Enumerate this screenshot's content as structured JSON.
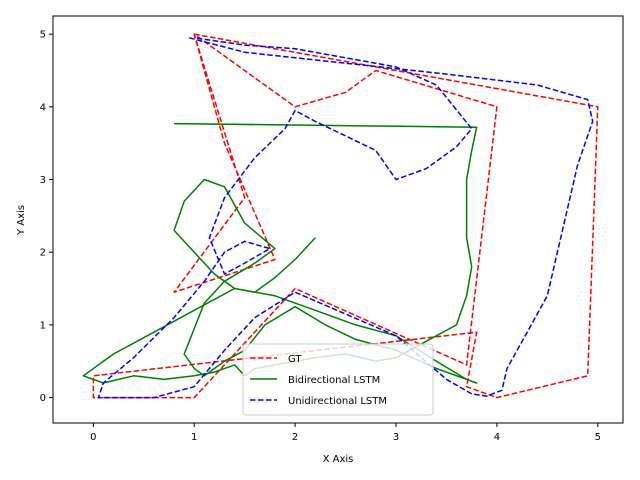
{
  "chart_data": {
    "type": "line",
    "title": "",
    "xlabel": "X Axis",
    "ylabel": "Y Axis",
    "xlim": [
      -0.4,
      5.25
    ],
    "ylim": [
      -0.35,
      5.25
    ],
    "xticks": [
      0,
      1,
      2,
      3,
      4,
      5
    ],
    "yticks": [
      0,
      1,
      2,
      3,
      4,
      5
    ],
    "grid": false,
    "legend": "lower center",
    "series": [
      {
        "name": "GT",
        "color": "#ff0000",
        "style": "dashed",
        "x": [
          1.0,
          5.0,
          4.9,
          4.0,
          3.7,
          3.8,
          0.0,
          0.0,
          1.0,
          2.0,
          3.7,
          4.0,
          2.8,
          2.5,
          2.0,
          1.0,
          1.5,
          0.8,
          1.8,
          1.3,
          1.0
        ],
        "y": [
          5.0,
          4.0,
          0.3,
          0.0,
          0.15,
          0.9,
          0.3,
          0.0,
          0.0,
          1.5,
          0.45,
          4.0,
          4.5,
          4.2,
          4.0,
          5.0,
          2.75,
          1.45,
          1.9,
          3.5,
          5.0
        ]
      },
      {
        "name": "Bidirectional LSTM",
        "color": "#008000",
        "style": "solid",
        "x": [
          0.8,
          3.8,
          3.75,
          3.7,
          3.7,
          3.7,
          3.75,
          3.7,
          3.6,
          3.2,
          3.0,
          2.8,
          2.5,
          2.2,
          2.0,
          1.8,
          1.6,
          1.5,
          1.4,
          1.2,
          1.0,
          0.7,
          0.4,
          0.1,
          -0.1,
          0.2,
          0.6,
          1.0,
          1.4,
          1.8,
          2.0,
          2.2,
          2.6,
          3.0,
          3.4,
          3.7,
          3.8,
          3.4,
          3.0,
          2.6,
          2.3,
          2.0,
          1.7,
          1.5,
          1.3,
          1.2,
          1.1,
          1.0,
          0.9,
          1.1,
          1.3,
          1.6,
          1.8,
          1.5,
          1.3,
          1.1,
          0.9,
          0.8,
          1.0,
          1.2,
          1.4,
          1.6,
          1.8,
          2.0,
          2.2
        ],
        "y": [
          3.77,
          3.72,
          3.4,
          3.0,
          2.6,
          2.2,
          1.8,
          1.4,
          1.0,
          0.7,
          0.55,
          0.5,
          0.6,
          0.55,
          0.5,
          0.45,
          0.4,
          0.3,
          0.45,
          0.35,
          0.3,
          0.25,
          0.3,
          0.2,
          0.3,
          0.6,
          0.9,
          1.2,
          1.5,
          1.4,
          1.3,
          1.2,
          1.0,
          0.85,
          0.5,
          0.25,
          0.2,
          0.4,
          0.65,
          0.8,
          1.0,
          1.25,
          1.0,
          0.65,
          0.5,
          0.4,
          0.3,
          0.4,
          0.6,
          1.3,
          1.6,
          1.85,
          2.05,
          2.4,
          2.9,
          3.0,
          2.7,
          2.3,
          2.0,
          1.7,
          1.5,
          1.45,
          1.65,
          1.9,
          2.2
        ]
      },
      {
        "name": "Unidirectional LSTM",
        "color": "#0000ff",
        "style": "dashed",
        "x": [
          0.95,
          1.5,
          2.5,
          3.5,
          4.4,
          4.9,
          4.95,
          4.8,
          4.7,
          4.6,
          4.5,
          4.3,
          4.1,
          4.05,
          3.9,
          3.75,
          3.5,
          3.0,
          2.5,
          2.0,
          1.6,
          1.3,
          1.0,
          0.6,
          0.3,
          0.05,
          0.1,
          0.4,
          0.8,
          1.1,
          1.3,
          1.5,
          1.75,
          1.5,
          1.3,
          1.15,
          1.3,
          1.6,
          1.9,
          2.0,
          2.2,
          2.5,
          2.8,
          3.0,
          3.3,
          3.6,
          3.75,
          3.4,
          3.0,
          2.6,
          2.4,
          2.0,
          1.5,
          1.0
        ],
        "y": [
          4.95,
          4.75,
          4.6,
          4.45,
          4.3,
          4.1,
          3.8,
          3.2,
          2.6,
          2.0,
          1.4,
          0.9,
          0.4,
          0.1,
          0.02,
          0.05,
          0.25,
          0.85,
          1.15,
          1.45,
          1.1,
          0.65,
          0.15,
          0.0,
          0.0,
          0.0,
          0.2,
          0.55,
          1.1,
          1.6,
          2.0,
          2.15,
          2.05,
          1.85,
          1.7,
          2.2,
          2.75,
          3.3,
          3.7,
          3.95,
          3.8,
          3.6,
          3.4,
          3.0,
          3.15,
          3.45,
          3.7,
          4.3,
          4.55,
          4.65,
          4.7,
          4.8,
          4.85,
          4.95
        ]
      }
    ]
  }
}
